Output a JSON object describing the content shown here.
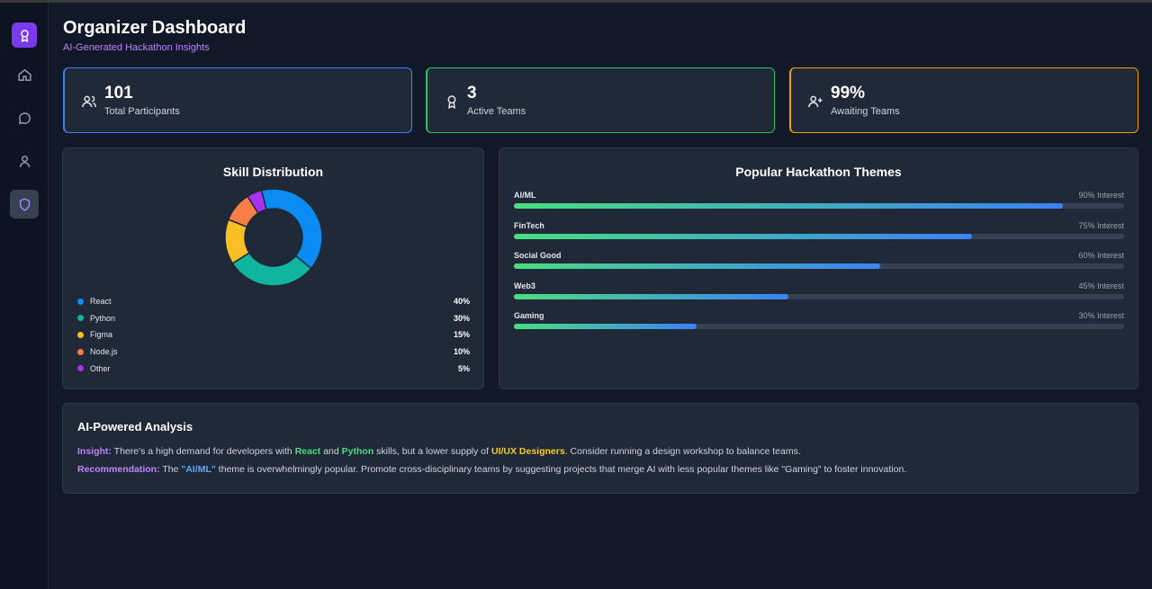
{
  "header": {
    "title": "Organizer Dashboard",
    "subtitle": "AI-Generated Hackathon Insights"
  },
  "sidebar": {
    "items": [
      {
        "icon": "award-icon",
        "name": "logo"
      },
      {
        "icon": "home-icon",
        "name": "home"
      },
      {
        "icon": "chat-icon",
        "name": "messages"
      },
      {
        "icon": "user-icon",
        "name": "profile"
      },
      {
        "icon": "shield-icon",
        "name": "organizer",
        "active": true
      }
    ]
  },
  "stats": [
    {
      "value": "101",
      "label": "Total Participants",
      "icon": "users-icon",
      "color": "#3b82f6"
    },
    {
      "value": "3",
      "label": "Active Teams",
      "icon": "award-icon",
      "color": "#22c55e"
    },
    {
      "value": "99%",
      "label": "Awaiting Teams",
      "icon": "user-plus-icon",
      "color": "#f59e0b"
    }
  ],
  "skills": {
    "title": "Skill Distribution",
    "items": [
      {
        "label": "React",
        "display": "40%",
        "color": "#0b8cf5"
      },
      {
        "label": "Python",
        "display": "30%",
        "color": "#10b5a0"
      },
      {
        "label": "Figma",
        "display": "15%",
        "color": "#fbbf24"
      },
      {
        "label": "Node.js",
        "display": "10%",
        "color": "#fb7f45"
      },
      {
        "label": "Other",
        "display": "5%",
        "color": "#a732f0"
      }
    ]
  },
  "chart_data": {
    "type": "pie",
    "title": "Skill Distribution",
    "categories": [
      "React",
      "Python",
      "Figma",
      "Node.js",
      "Other"
    ],
    "values": [
      40,
      30,
      15,
      10,
      5
    ]
  },
  "themes": {
    "title": "Popular Hackathon Themes",
    "items": [
      {
        "label": "AI/ML",
        "interest": "90% Interest",
        "value": 90
      },
      {
        "label": "FinTech",
        "interest": "75% Interest",
        "value": 75
      },
      {
        "label": "Social Good",
        "interest": "60% Interest",
        "value": 60
      },
      {
        "label": "Web3",
        "interest": "45% Interest",
        "value": 45
      },
      {
        "label": "Gaming",
        "interest": "30% Interest",
        "value": 30
      }
    ]
  },
  "analysis": {
    "title": "AI-Powered Analysis",
    "insight": {
      "label": "Insight:",
      "t1": " There's a high demand for developers with ",
      "react": "React",
      "t2": " and ",
      "python": "Python",
      "t3": " skills, but a lower supply of ",
      "uiux": "UI/UX Designers",
      "t4": ". Consider running a design workshop to balance teams."
    },
    "recommendation": {
      "label": "Recommendation:",
      "t1": " The ",
      "aiml": "\"AI/ML\"",
      "t2": " theme is overwhelmingly popular. Promote cross-disciplinary teams by suggesting projects that merge AI with less popular themes like \"Gaming\" to foster innovation."
    }
  }
}
